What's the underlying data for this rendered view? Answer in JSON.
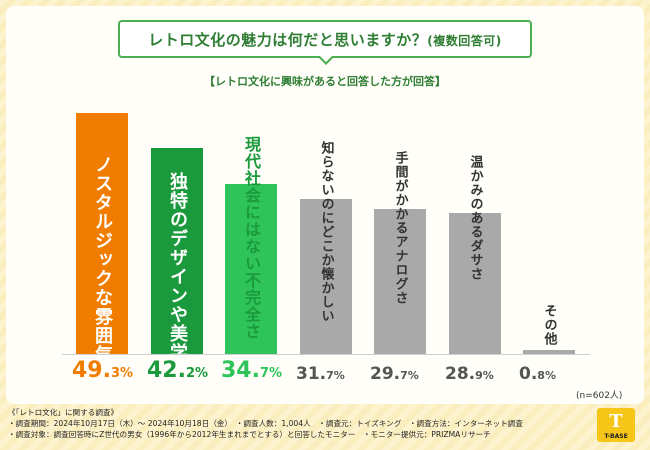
{
  "title": {
    "main": "レトロ文化の魅力は何だと思いますか？",
    "sub": "(複数回答可)"
  },
  "subtitle": "【レトロ文化に興味があると回答した方が回答】",
  "chart_data": {
    "type": "bar",
    "title": "レトロ文化の魅力は何だと思いますか？(複数回答可)",
    "categories": [
      "ノスタルジックな雰囲気",
      "独特のデザインや美学",
      "現代社会にはない不完全さ",
      "知らないのにどこか懐かしい",
      "手間がかかるアナログさ",
      "温かみのあるダサさ",
      "その他"
    ],
    "values": [
      49.3,
      42.2,
      34.7,
      31.7,
      29.7,
      28.9,
      0.8
    ],
    "unit": "%",
    "ylim": [
      0,
      50
    ],
    "colors": [
      "#f07d00",
      "#1a9a3c",
      "#2fc45a",
      "#a9a9a9",
      "#a9a9a9",
      "#a9a9a9",
      "#a9a9a9"
    ],
    "label_colors": [
      "#ffffff",
      "#ffffff",
      "#1a9a3c",
      "#333333",
      "#333333",
      "#333333",
      "#333333"
    ],
    "pct_colors": [
      "#f07d00",
      "#1a9a3c",
      "#2fc45a",
      "#555555",
      "#555555",
      "#555555",
      "#555555"
    ]
  },
  "n_note": "(n=602人)",
  "footer": {
    "lines": [
      "《「レトロ文化」に関する調査》",
      "・調査期間：2024年10月17日（木）～ 2024年10月18日（金）　・調査人数：1,004人　・調査元：トイズキング　・調査方法：インターネット調査",
      "・調査対象：調査回答時にZ世代の男女（1996年から2012年生まれまでとする）と回答したモニター　・モニター提供元：PRIZMAリサーチ"
    ]
  },
  "logo": {
    "mark": "T",
    "text": "T-BASE"
  }
}
